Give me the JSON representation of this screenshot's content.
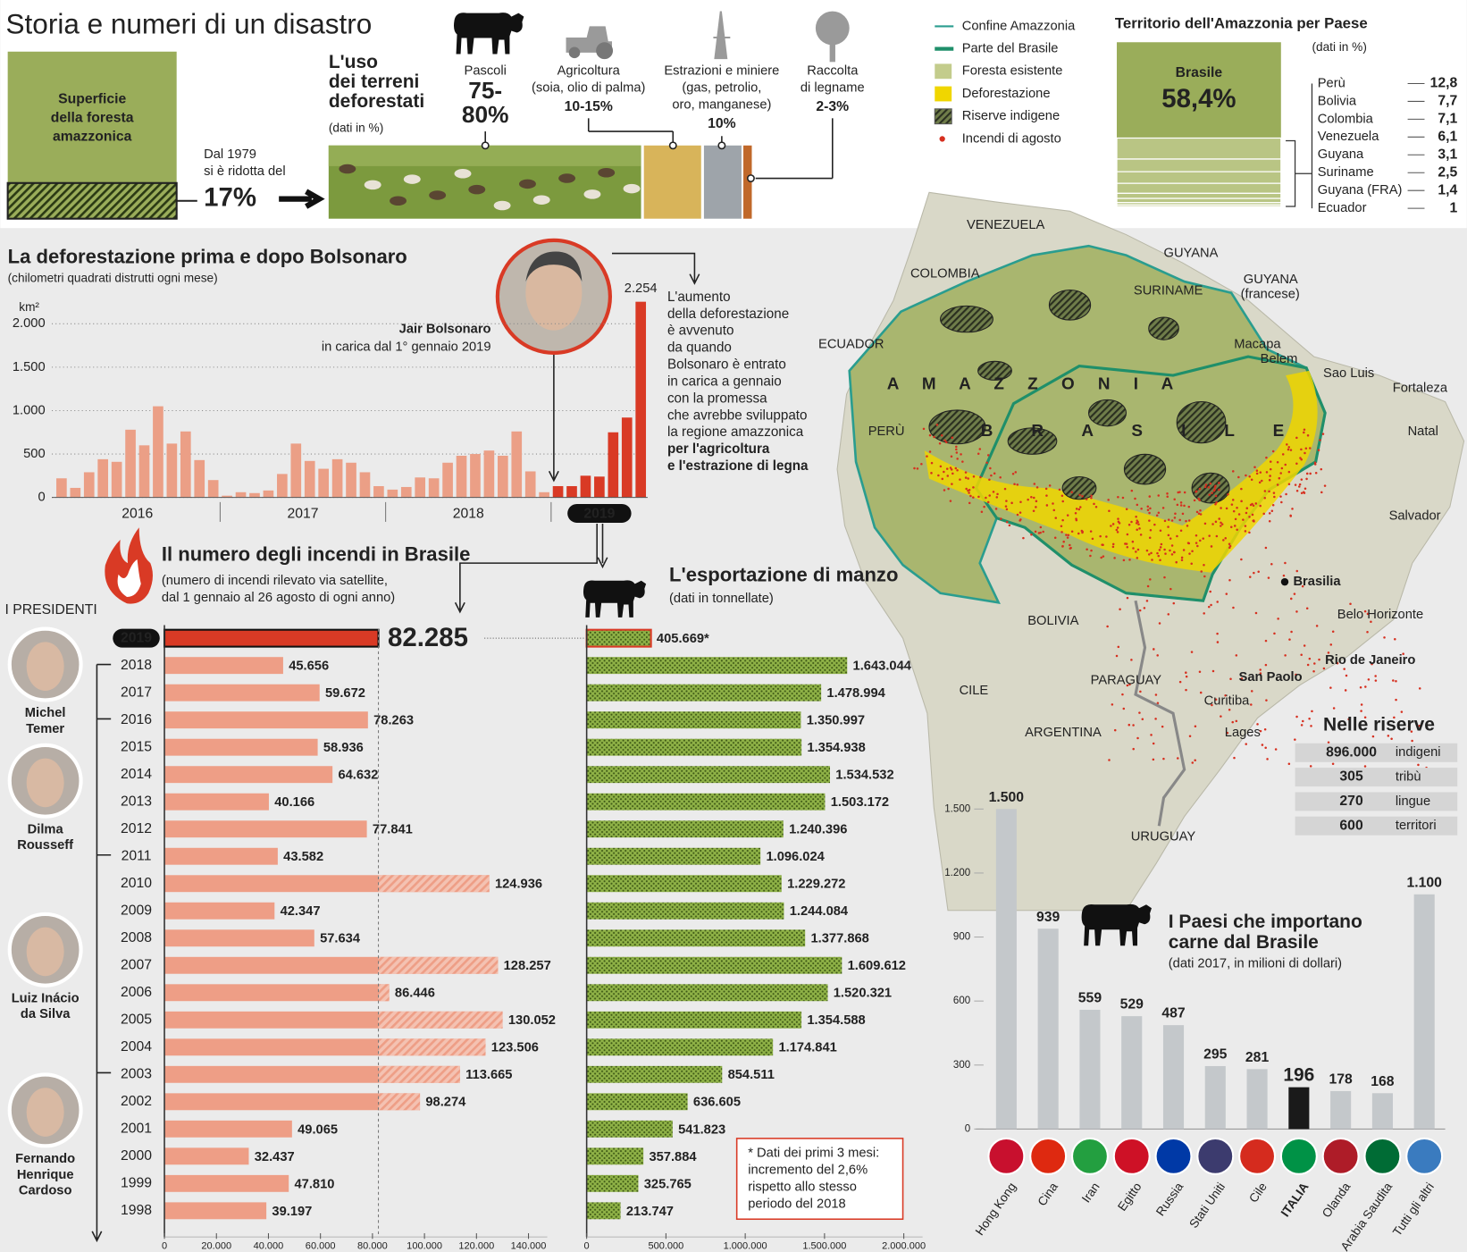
{
  "title": "Storia e numeri di un disastro",
  "forest": {
    "label": [
      "Superficie",
      "della foresta",
      "amazzonica"
    ],
    "text": [
      "Dal 1979",
      "si è ridotta del"
    ],
    "value_label": "17%"
  },
  "land_use": {
    "title": [
      "L'uso",
      "dei terreni",
      "deforestati"
    ],
    "note": "(dati in %)",
    "items": [
      {
        "label": [
          "Pascoli"
        ],
        "value_label": [
          "75-",
          "80%"
        ]
      },
      {
        "label": [
          "Agricoltura"
        ],
        "detail": [
          "(soia, olio di palma)"
        ],
        "value_label": [
          "10-15%"
        ]
      },
      {
        "label": [
          "Estrazioni e miniere"
        ],
        "detail": [
          "(gas, petrolio,",
          "oro, manganese)"
        ],
        "value_label": [
          "10%"
        ]
      },
      {
        "label": [
          "Raccolta",
          "di legname"
        ],
        "value_label": [
          "2-3%"
        ]
      }
    ]
  },
  "legend": [
    {
      "label": "Confine Amazzonia",
      "color": "#2a9d8f"
    },
    {
      "label": "Parte del Brasile",
      "color": "#1f8f6a"
    },
    {
      "label": "Foresta esistente",
      "color": "#c3cc8c"
    },
    {
      "label": "Deforestazione",
      "color": "#f0d600"
    },
    {
      "label": "Riserve indigene",
      "color": "#555555"
    },
    {
      "label": "Incendi di agosto",
      "color": "#d62f1f"
    }
  ],
  "map": {
    "labels": [
      "VENEZUELA",
      "COLOMBIA",
      "GUYANA",
      "SURINAME",
      "GUYANA",
      "(francese)",
      "ECUADOR",
      "PERÙ",
      "Macapa",
      "Belem",
      "Sao Luis",
      "Fortaleza",
      "Natal",
      "Salvador",
      "Brasilia",
      "Belo Horizonte",
      "Rio de Janeiro",
      "San Paolo",
      "Curitiba",
      "Lages",
      "BOLIVIA",
      "PARAGUAY",
      "CILE",
      "ARGENTINA",
      "URUGUAY"
    ],
    "region_words": [
      "A M A Z Z O N I A",
      "B R A S I L E"
    ]
  },
  "reserves": {
    "title": "Nelle riserve",
    "rows": [
      [
        "896.000",
        "indigeni"
      ],
      [
        "305",
        "tribù"
      ],
      [
        "270",
        "lingue"
      ],
      [
        "600",
        "territori"
      ]
    ]
  },
  "bolsonaro": {
    "name": "Jair Bolsonaro",
    "since": "in carica dal 1° gennaio 2019",
    "note": [
      "L'aumento",
      "della deforestazione",
      "è avvenuto",
      "da quando",
      "Bolsonaro è entrato",
      "in carica a gennaio",
      "con la promessa",
      "che avrebbe sviluppato",
      "la regione amazzonica",
      "per l'agricoltura",
      "e l'estrazione di legna"
    ]
  },
  "presidents": {
    "title": "I PRESIDENTI",
    "names": [
      [
        "Michel",
        "Temer"
      ],
      [
        "Dilma",
        "Rousseff"
      ],
      [
        "Luiz Inácio",
        "da Silva"
      ],
      [
        "Fernando",
        "Henrique",
        "Cardoso"
      ]
    ]
  },
  "chart_data": [
    {
      "type": "bar",
      "title": "La deforestazione prima e dopo Bolsonaro",
      "subtitle": "(chilometri quadrati distrutti ogni mese)",
      "y_unit": "km²",
      "categories": [
        "2016",
        null,
        null,
        null,
        null,
        null,
        null,
        null,
        null,
        null,
        null,
        null,
        "2017",
        null,
        null,
        null,
        null,
        null,
        null,
        null,
        null,
        null,
        null,
        null,
        "2018",
        null,
        null,
        null,
        null,
        null,
        null,
        null,
        null,
        null,
        null,
        null,
        "2019",
        null,
        null,
        null,
        null,
        null,
        null
      ],
      "values": [
        220,
        110,
        290,
        440,
        410,
        780,
        600,
        1050,
        620,
        760,
        430,
        200,
        20,
        60,
        50,
        80,
        270,
        620,
        420,
        330,
        440,
        400,
        290,
        130,
        90,
        120,
        230,
        220,
        400,
        480,
        500,
        540,
        480,
        760,
        300,
        60,
        130,
        130,
        250,
        240,
        750,
        920,
        2254
      ],
      "value_labels": [
        null,
        null,
        null,
        null,
        null,
        null,
        null,
        null,
        null,
        null,
        null,
        null,
        null,
        null,
        null,
        null,
        null,
        null,
        null,
        null,
        null,
        null,
        null,
        null,
        null,
        null,
        null,
        null,
        null,
        null,
        null,
        null,
        null,
        null,
        null,
        null,
        null,
        null,
        null,
        null,
        null,
        null,
        "2.254"
      ],
      "colors": [
        "#eb9f86",
        "#eb9f86",
        "#eb9f86",
        "#eb9f86",
        "#eb9f86",
        "#eb9f86",
        "#eb9f86",
        "#eb9f86",
        "#eb9f86",
        "#eb9f86",
        "#eb9f86",
        "#eb9f86",
        "#eb9f86",
        "#eb9f86",
        "#eb9f86",
        "#eb9f86",
        "#eb9f86",
        "#eb9f86",
        "#eb9f86",
        "#eb9f86",
        "#eb9f86",
        "#eb9f86",
        "#eb9f86",
        "#eb9f86",
        "#eb9f86",
        "#eb9f86",
        "#eb9f86",
        "#eb9f86",
        "#eb9f86",
        "#eb9f86",
        "#eb9f86",
        "#eb9f86",
        "#eb9f86",
        "#eb9f86",
        "#eb9f86",
        "#eb9f86",
        "#d93a25",
        "#d93a25",
        "#d93a25",
        "#d93a25",
        "#d93a25",
        "#d93a25",
        "#d93a25"
      ],
      "ylim": [
        0,
        2300
      ],
      "yticks": [
        0,
        500,
        {
          "value": 1000,
          "label": "1.000"
        },
        {
          "value": 1500,
          "label": "1.500"
        },
        {
          "value": 2000,
          "label": "2.000"
        }
      ],
      "grid": true
    },
    {
      "type": "hbar",
      "title": "Il numero degli incendi in Brasile",
      "subtitle": [
        "(numero di incendi rilevato via satellite,",
        "dal 1 gennaio al 26 agosto di ogni anno)"
      ],
      "categories": [
        "2019",
        "2018",
        "2017",
        "2016",
        "2015",
        "2014",
        "2013",
        "2012",
        "2011",
        "2010",
        "2009",
        "2008",
        "2007",
        "2006",
        "2005",
        "2004",
        "2003",
        "2002",
        "2001",
        "2000",
        "1999",
        "1998"
      ],
      "values": [
        82285,
        45656,
        59672,
        78263,
        58936,
        64632,
        40166,
        77841,
        43582,
        124936,
        42347,
        57634,
        128257,
        86446,
        130052,
        123506,
        113665,
        98274,
        49065,
        32437,
        47810,
        39197
      ],
      "value_labels": [
        "82.285",
        "45.656",
        "59.672",
        "78.263",
        "58.936",
        "64.632",
        "40.166",
        "77.841",
        "43.582",
        "124.936",
        "42.347",
        "57.634",
        "128.257",
        "86.446",
        "130.052",
        "123.506",
        "113.665",
        "98.274",
        "49.065",
        "32.437",
        "47.810",
        "39.197"
      ],
      "color": "#ee9e86",
      "highlight_color": "#d93a25",
      "xlim": [
        0,
        140000
      ],
      "xticks": [
        0,
        {
          "value": 20000,
          "label": "20.000"
        },
        {
          "value": 40000,
          "label": "40.000"
        },
        {
          "value": 60000,
          "label": "60.000"
        },
        {
          "value": 80000,
          "label": "80.000"
        },
        {
          "value": 100000,
          "label": "100.000"
        },
        {
          "value": 120000,
          "label": "120.000"
        },
        {
          "value": 140000,
          "label": "140.000"
        }
      ]
    },
    {
      "type": "hbar",
      "title": "L'esportazione di manzo",
      "subtitle": [
        "(dati in tonnellate)"
      ],
      "values": [
        405669,
        1643044,
        1478994,
        1350997,
        1354938,
        1534532,
        1503172,
        1240396,
        1096024,
        1229272,
        1244084,
        1377868,
        1609612,
        1520321,
        1354588,
        1174841,
        854511,
        636605,
        541823,
        357884,
        325765,
        213747
      ],
      "value_labels": [
        "405.669*",
        "1.643.044",
        "1.478.994",
        "1.350.997",
        "1.354.938",
        "1.534.532",
        "1.503.172",
        "1.240.396",
        "1.096.024",
        "1.229.272",
        "1.244.084",
        "1.377.868",
        "1.609.612",
        "1.520.321",
        "1.354.588",
        "1.174.841",
        "854.511",
        "636.605",
        "541.823",
        "357.884",
        "325.765",
        "213.747"
      ],
      "color": "#8fb247",
      "highlight_color": "#d93a25",
      "xlim": [
        0,
        2000000
      ],
      "xticks": [
        0,
        {
          "value": 500000,
          "label": "500.000"
        },
        {
          "value": 1000000,
          "label": "1.000.000"
        },
        {
          "value": 1500000,
          "label": "1.500.000"
        },
        {
          "value": 2000000,
          "label": "2.000.000"
        }
      ],
      "note": [
        "* Dati dei primi 3 mesi:",
        "incremento del 2,6%",
        "rispetto allo stesso",
        "periodo del 2018"
      ]
    },
    {
      "type": "bar",
      "title": [
        "I Paesi che importano",
        "carne dal Brasile"
      ],
      "subtitle": "(dati 2017, in milioni di dollari)",
      "categories": [
        "Hong Kong",
        "Cina",
        "Iran",
        "Egitto",
        "Russia",
        "Stati Uniti",
        "Cile",
        "ITALIA",
        "Olanda",
        "Arabia Saudita",
        "Tutti gli altri"
      ],
      "values": [
        1500,
        939,
        559,
        529,
        487,
        295,
        281,
        196,
        178,
        168,
        1100
      ],
      "value_labels": [
        "1.500",
        "939",
        "559",
        "529",
        "487",
        "295",
        "281",
        "196",
        "178",
        "168",
        "1.100"
      ],
      "colors": [
        "#c4c8cb",
        "#c4c8cb",
        "#c4c8cb",
        "#c4c8cb",
        "#c4c8cb",
        "#c4c8cb",
        "#c4c8cb",
        "#1a1a1a",
        "#c4c8cb",
        "#c4c8cb",
        "#c4c8cb"
      ],
      "ylim": [
        0,
        1500
      ],
      "yticks": [
        0,
        300,
        600,
        900,
        {
          "value": 1200,
          "label": "1.200"
        },
        {
          "value": 1500,
          "label": "1.500"
        }
      ]
    },
    {
      "type": "stack",
      "title": "Territorio dell'Amazzonia per Paese",
      "subtitle": "(dati in %)",
      "categories": [
        "Brasile",
        "Perù",
        "Bolivia",
        "Colombia",
        "Venezuela",
        "Guyana",
        "Suriname",
        "Guyana (FRA)",
        "Ecuador"
      ],
      "values": [
        58.4,
        12.8,
        7.7,
        7.1,
        6.1,
        3.1,
        2.5,
        1.4,
        1
      ],
      "value_labels": [
        "58,4%",
        "12,8",
        "7,7",
        "7,1",
        "6,1",
        "3,1",
        "2,5",
        "1,4",
        "1"
      ],
      "color": "#9aad5a"
    }
  ]
}
